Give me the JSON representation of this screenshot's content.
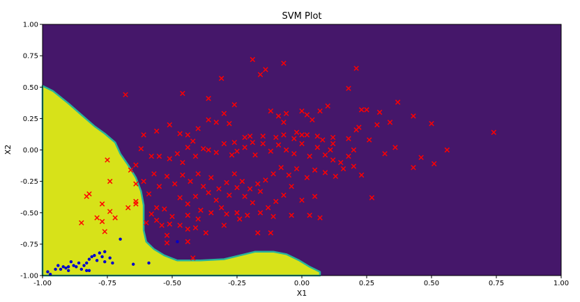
{
  "chart_data": {
    "type": "scatter",
    "title": "SVM Plot",
    "xlabel": "X1",
    "ylabel": "X2",
    "xlim": [
      -1.0,
      1.0
    ],
    "ylim": [
      -1.0,
      1.0
    ],
    "x_ticks": [
      "-1.00",
      "-0.75",
      "-0.50",
      "-0.25",
      "0.00",
      "0.25",
      "0.50",
      "0.75",
      "1.00"
    ],
    "y_ticks": [
      "1.00",
      "0.75",
      "0.50",
      "0.25",
      "0.00",
      "-0.25",
      "-0.50",
      "-0.75",
      "-1.00"
    ],
    "x_tick_values": [
      -1.0,
      -0.75,
      -0.5,
      -0.25,
      0.0,
      0.25,
      0.5,
      0.75,
      1.0
    ],
    "y_tick_values": [
      1.0,
      0.75,
      0.5,
      0.25,
      0.0,
      -0.25,
      -0.5,
      -0.75,
      -1.0
    ],
    "grid": false,
    "colors": {
      "background_region": "#45176a",
      "class_region": "#d7e219",
      "boundary": "#29b49a",
      "cross_marker": "#ff0000",
      "dot_marker": "#0000cc"
    },
    "decision_region": [
      [
        -1.0,
        0.51
      ],
      [
        -0.96,
        0.47
      ],
      [
        -0.9,
        0.37
      ],
      [
        -0.85,
        0.28
      ],
      [
        -0.8,
        0.19
      ],
      [
        -0.76,
        0.13
      ],
      [
        -0.72,
        0.06
      ],
      [
        -0.7,
        -0.03
      ],
      [
        -0.67,
        -0.12
      ],
      [
        -0.64,
        -0.22
      ],
      [
        -0.62,
        -0.33
      ],
      [
        -0.61,
        -0.44
      ],
      [
        -0.61,
        -0.55
      ],
      [
        -0.61,
        -0.64
      ],
      [
        -0.6,
        -0.73
      ],
      [
        -0.57,
        -0.79
      ],
      [
        -0.53,
        -0.84
      ],
      [
        -0.48,
        -0.88
      ],
      [
        -0.39,
        -0.88
      ],
      [
        -0.3,
        -0.87
      ],
      [
        -0.22,
        -0.83
      ],
      [
        -0.18,
        -0.81
      ],
      [
        -0.11,
        -0.81
      ],
      [
        -0.06,
        -0.83
      ],
      [
        -0.01,
        -0.88
      ],
      [
        0.03,
        -0.93
      ],
      [
        0.07,
        -0.97
      ],
      [
        0.07,
        -1.0
      ],
      [
        -1.0,
        -1.0
      ]
    ],
    "series": [
      {
        "marker": "x",
        "color": "#ff0000",
        "points": [
          [
            -0.68,
            0.44
          ],
          [
            -0.46,
            0.45
          ],
          [
            -0.36,
            0.41
          ],
          [
            -0.31,
            0.57
          ],
          [
            -0.19,
            0.72
          ],
          [
            -0.14,
            0.64
          ],
          [
            -0.16,
            0.6
          ],
          [
            -0.07,
            0.69
          ],
          [
            -0.26,
            0.36
          ],
          [
            -0.12,
            0.31
          ],
          [
            -0.09,
            0.27
          ],
          [
            -0.06,
            0.29
          ],
          [
            0.0,
            0.31
          ],
          [
            0.02,
            0.28
          ],
          [
            0.04,
            0.24
          ],
          [
            0.07,
            0.31
          ],
          [
            0.1,
            0.35
          ],
          [
            0.18,
            0.49
          ],
          [
            0.21,
            0.65
          ],
          [
            0.23,
            0.32
          ],
          [
            0.25,
            0.32
          ],
          [
            0.3,
            0.3
          ],
          [
            0.37,
            0.38
          ],
          [
            0.43,
            0.27
          ],
          [
            0.5,
            0.21
          ],
          [
            0.34,
            0.22
          ],
          [
            0.22,
            0.18
          ],
          [
            0.21,
            0.16
          ],
          [
            0.18,
            0.09
          ],
          [
            0.12,
            0.05
          ],
          [
            0.08,
            0.08
          ],
          [
            0.06,
            0.11
          ],
          [
            0.02,
            0.12
          ],
          [
            0.0,
            0.12
          ],
          [
            -0.03,
            0.09
          ],
          [
            -0.07,
            0.12
          ],
          [
            -0.1,
            0.1
          ],
          [
            -0.15,
            0.11
          ],
          [
            -0.19,
            0.06
          ],
          [
            -0.2,
            0.11
          ],
          [
            -0.22,
            0.1
          ],
          [
            -0.26,
            0.06
          ],
          [
            -0.28,
            0.21
          ],
          [
            -0.3,
            0.29
          ],
          [
            -0.33,
            0.22
          ],
          [
            -0.36,
            0.24
          ],
          [
            -0.4,
            0.17
          ],
          [
            -0.44,
            0.12
          ],
          [
            -0.47,
            0.13
          ],
          [
            -0.51,
            0.2
          ],
          [
            -0.56,
            0.15
          ],
          [
            -0.61,
            0.12
          ],
          [
            -0.62,
            0.01
          ],
          [
            -0.58,
            -0.05
          ],
          [
            -0.55,
            -0.05
          ],
          [
            -0.51,
            -0.07
          ],
          [
            -0.48,
            -0.03
          ],
          [
            -0.46,
            -0.1
          ],
          [
            -0.44,
            0.02
          ],
          [
            -0.42,
            0.07
          ],
          [
            -0.41,
            -0.05
          ],
          [
            -0.38,
            0.01
          ],
          [
            -0.36,
            0.0
          ],
          [
            -0.33,
            -0.02
          ],
          [
            -0.3,
            0.05
          ],
          [
            -0.27,
            -0.04
          ],
          [
            -0.25,
            -0.01
          ],
          [
            -0.22,
            0.02
          ],
          [
            -0.18,
            -0.04
          ],
          [
            -0.15,
            0.05
          ],
          [
            -0.12,
            -0.01
          ],
          [
            -0.09,
            0.04
          ],
          [
            -0.06,
            0.0
          ],
          [
            -0.03,
            -0.03
          ],
          [
            0.0,
            0.05
          ],
          [
            0.03,
            -0.05
          ],
          [
            0.06,
            0.02
          ],
          [
            0.09,
            -0.04
          ],
          [
            0.12,
            -0.08
          ],
          [
            0.15,
            -0.1
          ],
          [
            0.18,
            -0.05
          ],
          [
            0.2,
            0.0
          ],
          [
            0.26,
            0.08
          ],
          [
            0.29,
            0.2
          ],
          [
            0.36,
            0.02
          ],
          [
            0.43,
            -0.14
          ],
          [
            0.46,
            -0.06
          ],
          [
            0.51,
            -0.11
          ],
          [
            0.56,
            0.0
          ],
          [
            0.74,
            0.14
          ],
          [
            0.32,
            -0.03
          ],
          [
            0.27,
            -0.38
          ],
          [
            0.13,
            -0.21
          ],
          [
            0.09,
            -0.18
          ],
          [
            0.05,
            -0.16
          ],
          [
            0.02,
            -0.22
          ],
          [
            -0.02,
            -0.15
          ],
          [
            -0.05,
            -0.2
          ],
          [
            -0.08,
            -0.14
          ],
          [
            -0.11,
            -0.19
          ],
          [
            -0.14,
            -0.24
          ],
          [
            -0.17,
            -0.27
          ],
          [
            -0.2,
            -0.31
          ],
          [
            -0.23,
            -0.25
          ],
          [
            -0.26,
            -0.19
          ],
          [
            -0.29,
            -0.26
          ],
          [
            -0.32,
            -0.31
          ],
          [
            -0.35,
            -0.22
          ],
          [
            -0.38,
            -0.29
          ],
          [
            -0.4,
            -0.19
          ],
          [
            -0.43,
            -0.25
          ],
          [
            -0.46,
            -0.2
          ],
          [
            -0.49,
            -0.27
          ],
          [
            -0.52,
            -0.21
          ],
          [
            -0.55,
            -0.29
          ],
          [
            -0.57,
            -0.19
          ],
          [
            -0.59,
            -0.35
          ],
          [
            -0.56,
            -0.46
          ],
          [
            -0.53,
            -0.47
          ],
          [
            -0.5,
            -0.53
          ],
          [
            -0.47,
            -0.38
          ],
          [
            -0.44,
            -0.43
          ],
          [
            -0.41,
            -0.37
          ],
          [
            -0.39,
            -0.48
          ],
          [
            -0.36,
            -0.34
          ],
          [
            -0.33,
            -0.4
          ],
          [
            -0.31,
            -0.46
          ],
          [
            -0.28,
            -0.36
          ],
          [
            -0.25,
            -0.3
          ],
          [
            -0.22,
            -0.37
          ],
          [
            -0.19,
            -0.42
          ],
          [
            -0.16,
            -0.33
          ],
          [
            -0.13,
            -0.46
          ],
          [
            -0.1,
            -0.41
          ],
          [
            -0.07,
            -0.36
          ],
          [
            -0.04,
            -0.29
          ],
          [
            0.0,
            -0.4
          ],
          [
            0.05,
            -0.37
          ],
          [
            0.07,
            -0.54
          ],
          [
            -0.04,
            -0.52
          ],
          [
            -0.11,
            -0.53
          ],
          [
            -0.16,
            -0.5
          ],
          [
            -0.21,
            -0.52
          ],
          [
            -0.25,
            -0.5
          ],
          [
            -0.29,
            -0.51
          ],
          [
            -0.35,
            -0.5
          ],
          [
            -0.4,
            -0.55
          ],
          [
            -0.44,
            -0.52
          ],
          [
            -0.47,
            -0.6
          ],
          [
            -0.51,
            -0.59
          ],
          [
            -0.54,
            -0.6
          ],
          [
            -0.56,
            -0.56
          ],
          [
            -0.6,
            -0.58
          ],
          [
            -0.58,
            -0.51
          ],
          [
            -0.52,
            -0.68
          ],
          [
            -0.52,
            -0.74
          ],
          [
            -0.44,
            -0.63
          ],
          [
            -0.41,
            -0.62
          ],
          [
            -0.44,
            -0.73
          ],
          [
            -0.42,
            -0.86
          ],
          [
            -0.37,
            -0.66
          ],
          [
            -0.3,
            -0.6
          ],
          [
            -0.24,
            -0.55
          ],
          [
            -0.17,
            -0.66
          ],
          [
            -0.12,
            -0.66
          ],
          [
            -0.64,
            -0.41
          ],
          [
            -0.64,
            -0.27
          ],
          [
            -0.61,
            -0.25
          ],
          [
            -0.66,
            -0.16
          ],
          [
            -0.64,
            -0.12
          ],
          [
            -0.75,
            -0.08
          ],
          [
            -0.74,
            -0.25
          ],
          [
            -0.77,
            -0.43
          ],
          [
            -0.74,
            -0.49
          ],
          [
            -0.72,
            -0.54
          ],
          [
            -0.67,
            -0.46
          ],
          [
            -0.64,
            -0.43
          ],
          [
            -0.77,
            -0.57
          ],
          [
            -0.76,
            -0.65
          ],
          [
            -0.82,
            -0.35
          ],
          [
            -0.83,
            -0.37
          ],
          [
            -0.79,
            -0.54
          ],
          [
            -0.85,
            -0.58
          ],
          [
            0.03,
            -0.52
          ],
          [
            0.11,
            0.0
          ],
          [
            0.2,
            -0.13
          ],
          [
            0.23,
            -0.2
          ],
          [
            0.16,
            -0.15
          ],
          [
            0.12,
            0.1
          ],
          [
            -0.02,
            0.14
          ],
          [
            -0.07,
            0.22
          ]
        ]
      },
      {
        "marker": "o",
        "color": "#0000cc",
        "points": [
          [
            -0.98,
            -0.97
          ],
          [
            -0.97,
            -0.99
          ],
          [
            -0.95,
            -0.95
          ],
          [
            -0.94,
            -0.92
          ],
          [
            -0.93,
            -0.95
          ],
          [
            -0.92,
            -0.93
          ],
          [
            -0.9,
            -0.93
          ],
          [
            -0.9,
            -0.96
          ],
          [
            -0.88,
            -0.92
          ],
          [
            -0.86,
            -0.9
          ],
          [
            -0.85,
            -0.95
          ],
          [
            -0.84,
            -0.92
          ],
          [
            -0.83,
            -0.9
          ],
          [
            -0.82,
            -0.87
          ],
          [
            -0.81,
            -0.85
          ],
          [
            -0.8,
            -0.84
          ],
          [
            -0.79,
            -0.88
          ],
          [
            -0.78,
            -0.82
          ],
          [
            -0.77,
            -0.85
          ],
          [
            -0.76,
            -0.89
          ],
          [
            -0.76,
            -0.81
          ],
          [
            -0.73,
            -0.9
          ],
          [
            -0.82,
            -0.96
          ],
          [
            -0.87,
            -0.93
          ],
          [
            -0.91,
            -0.94
          ],
          [
            -0.74,
            -0.86
          ],
          [
            -0.7,
            -0.71
          ],
          [
            -0.65,
            -0.91
          ],
          [
            -0.59,
            -0.9
          ],
          [
            -0.48,
            -0.73
          ],
          [
            -0.83,
            -0.96
          ],
          [
            -0.89,
            -0.89
          ]
        ]
      }
    ]
  }
}
